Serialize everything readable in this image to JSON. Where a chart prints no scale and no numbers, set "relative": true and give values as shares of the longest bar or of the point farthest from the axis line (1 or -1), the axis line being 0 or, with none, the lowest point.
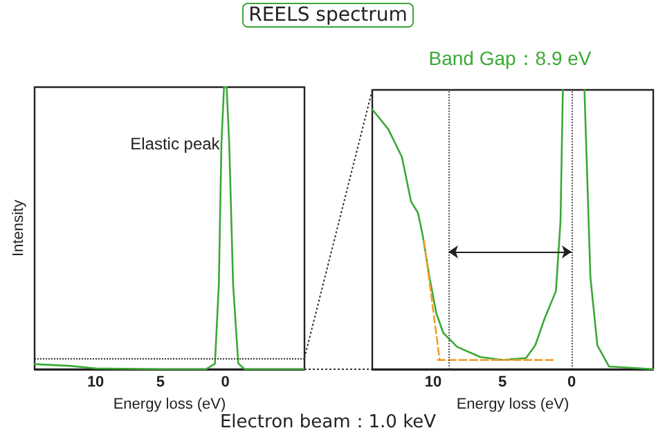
{
  "chart_data": [
    {
      "type": "line",
      "title": "REELS spectrum",
      "xlabel": "Energy loss (eV)",
      "ylabel": "Intensity",
      "relative": true,
      "xlim": [
        14.7,
        -6.1
      ],
      "xticks": [
        10,
        5,
        0
      ],
      "tick_labels": "x",
      "marker": "none",
      "x": [
        14.7,
        12,
        10,
        5,
        1.5,
        0.8,
        0.5,
        0.3,
        0.1,
        -0.1,
        -0.3,
        -0.6,
        -1,
        -1.5,
        -6.1
      ],
      "series": [
        {
          "color": "#3aa935",
          "values": [
            0.018,
            0.012,
            0.003,
            0,
            0,
            0.02,
            0.3,
            0.8,
            1,
            1,
            0.8,
            0.3,
            0.02,
            0,
            0
          ]
        }
      ],
      "ref_lines": [
        {
          "axis": "y",
          "value": 0.04,
          "color": "#333333",
          "line_style": "dotted"
        }
      ],
      "annotations": [
        {
          "text": "Elastic peak",
          "x": 0,
          "y": 0.8
        },
        "Electron beam：1.0 keV"
      ]
    },
    {
      "type": "line",
      "xlabel": "Energy loss (eV)",
      "relative": true,
      "xlim": [
        14.4,
        -5.9
      ],
      "xticks": [
        10,
        5,
        0
      ],
      "tick_labels": "x",
      "marker": "none",
      "x": [
        14.4,
        13.25,
        12.26,
        11.6,
        11.1,
        10.76,
        10.27,
        9.77,
        9.27,
        8.27,
        6.6,
        4.95,
        3.29,
        2.62,
        1.96,
        1.13,
        0.8,
        0.63,
        0,
        -0.93,
        -1.36,
        -1.86,
        -2.7,
        -5,
        -5.9
      ],
      "series": [
        {
          "color": "#3aa935",
          "values": [
            0.93,
            0.86,
            0.76,
            0.6,
            0.56,
            0.48,
            0.33,
            0.2,
            0.13,
            0.08,
            0.044,
            0.033,
            0.04,
            0.086,
            0.18,
            0.28,
            0.53,
            1,
            null,
            1,
            0.33,
            0.086,
            0.01,
            0.003,
            0
          ]
        },
        {
          "type": "line",
          "color": "#f0a030",
          "line_style": "dashed",
          "x": [
            10.66,
            9.53
          ],
          "values": [
            0.46,
            0.033
          ]
        },
        {
          "type": "line",
          "color": "#f0a030",
          "line_style": "dashed",
          "x": [
            9.67,
            1.13
          ],
          "values": [
            0.033,
            0.033
          ]
        }
      ],
      "ref_lines": [
        {
          "axis": "x",
          "value": 8.9,
          "color": "#555555",
          "line_style": "dotted"
        },
        {
          "axis": "x",
          "value": 0,
          "color": "#555555",
          "line_style": "dotted"
        }
      ],
      "annotations": [
        "Band Gap：8.9 eV"
      ]
    }
  ]
}
